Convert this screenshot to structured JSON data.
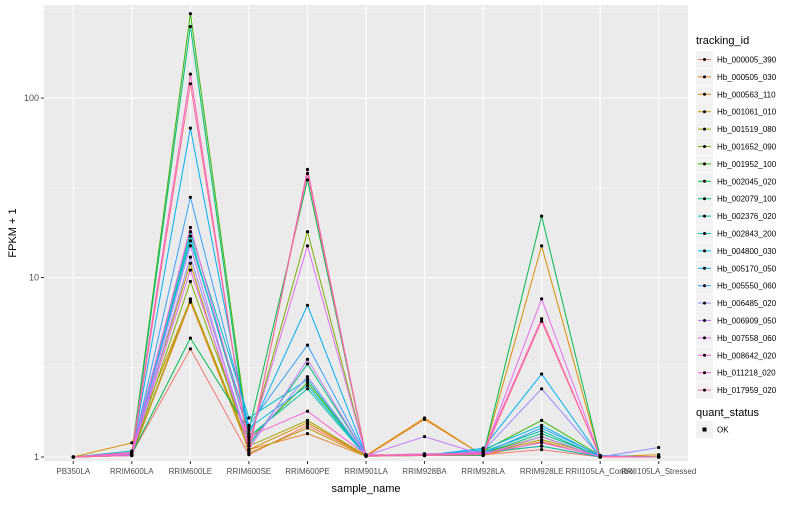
{
  "chart_data": {
    "type": "line",
    "xlabel": "sample_name",
    "ylabel": "FPKM + 1",
    "y_scale": "log10",
    "ylim": [
      0.95,
      330
    ],
    "grid": true,
    "legend_position": "right",
    "categories": [
      "PB350LA",
      "RRIM600LA",
      "RRIM600LE",
      "RRIM600SE",
      "RRIM600PE",
      "RRIM901LA",
      "RRIM928BA",
      "RRIM928LA",
      "RRIM928LE",
      "RRII105LA_Control",
      "RRII105LA_Stressed"
    ],
    "y_ticks": [
      1,
      10,
      100
    ],
    "y_tick_labels": [
      "1",
      "10",
      "100"
    ],
    "legend": {
      "color_title": "tracking_id",
      "shape_title": "quant_status",
      "shape_items": [
        "OK"
      ]
    },
    "series": [
      {
        "name": "Hb_000005_390",
        "color": "#F8766D",
        "values": [
          1,
          1.04,
          4,
          1.03,
          1.5,
          1.02,
          1.02,
          1.03,
          1.1,
          1,
          1
        ]
      },
      {
        "name": "Hb_000505_030",
        "color": "#EA8331",
        "values": [
          1,
          1.02,
          7.3,
          1.1,
          1.35,
          1.01,
          1.62,
          1.02,
          1.22,
          1,
          1
        ]
      },
      {
        "name": "Hb_000563_110",
        "color": "#D89000",
        "values": [
          1,
          1.2,
          7.5,
          1.1,
          1.55,
          1.02,
          1.65,
          1.02,
          15,
          1,
          1.03
        ]
      },
      {
        "name": "Hb_001061_010",
        "color": "#C09B00",
        "values": [
          1,
          1.06,
          12,
          1.05,
          1.45,
          1.01,
          1.02,
          1.05,
          1.15,
          1,
          1
        ]
      },
      {
        "name": "Hb_001519_080",
        "color": "#A3A500",
        "values": [
          1,
          1.03,
          7.6,
          1.15,
          1.6,
          1.02,
          1.03,
          1.04,
          1.25,
          1.02,
          1
        ]
      },
      {
        "name": "Hb_001652_090",
        "color": "#7CAE00",
        "values": [
          1,
          1.02,
          9.5,
          1.2,
          18,
          1.02,
          1.02,
          1.05,
          1.3,
          1,
          1
        ]
      },
      {
        "name": "Hb_001952_100",
        "color": "#39B600",
        "values": [
          1,
          1.05,
          295,
          1.25,
          2.6,
          1.03,
          1.02,
          1.08,
          1.6,
          1.02,
          1
        ]
      },
      {
        "name": "Hb_002045_020",
        "color": "#00BB4E",
        "values": [
          1,
          1.04,
          4.6,
          1.4,
          35,
          1.02,
          1.02,
          1.02,
          22,
          1,
          1
        ]
      },
      {
        "name": "Hb_002079_100",
        "color": "#00BF7D",
        "values": [
          1,
          1.03,
          250,
          1.15,
          3.3,
          1.02,
          1.04,
          1.05,
          1.35,
          1.01,
          1
        ]
      },
      {
        "name": "Hb_002376_020",
        "color": "#00C1A3",
        "values": [
          1,
          1.02,
          17,
          1.3,
          2.4,
          1.01,
          1.02,
          1.07,
          1.4,
          1,
          1
        ]
      },
      {
        "name": "Hb_002843_200",
        "color": "#00BFC4",
        "values": [
          1,
          1.08,
          18,
          1.65,
          2.7,
          1.02,
          1.03,
          1.06,
          1.15,
          1,
          1
        ]
      },
      {
        "name": "Hb_004800_030",
        "color": "#00BAE0",
        "values": [
          1,
          1.05,
          16,
          1.45,
          2.5,
          1.02,
          1.02,
          1.1,
          1.5,
          1.01,
          1
        ]
      },
      {
        "name": "Hb_005170_050",
        "color": "#00B0F6",
        "values": [
          1,
          1.03,
          68,
          1.35,
          7,
          1.02,
          1.02,
          1.12,
          2.9,
          1,
          1
        ]
      },
      {
        "name": "Hb_005550_060",
        "color": "#35A2FF",
        "values": [
          1,
          1.04,
          28,
          1.5,
          4.2,
          1.03,
          1.02,
          1.05,
          1.45,
          1.02,
          1
        ]
      },
      {
        "name": "Hb_006485_020",
        "color": "#9590FF",
        "values": [
          1,
          1.02,
          13,
          1.2,
          2.8,
          1.02,
          1.02,
          1.08,
          2.4,
          1,
          1.13
        ]
      },
      {
        "name": "Hb_006909_050",
        "color": "#C77CFF",
        "values": [
          1,
          1.02,
          15,
          1.1,
          3.5,
          1.02,
          1.3,
          1.03,
          1.3,
          1,
          1
        ]
      },
      {
        "name": "Hb_007558_060",
        "color": "#E76BF3",
        "values": [
          1,
          1.04,
          11,
          1.2,
          15,
          1.02,
          1.04,
          1.04,
          7.6,
          1,
          1
        ]
      },
      {
        "name": "Hb_008642_020",
        "color": "#FA62DB",
        "values": [
          1,
          1.05,
          19,
          1.3,
          1.8,
          1.03,
          1.02,
          1.05,
          1.2,
          1.01,
          1
        ]
      },
      {
        "name": "Hb_011218_020",
        "color": "#FF62BC",
        "values": [
          1,
          1.06,
          136,
          1.05,
          40,
          1.02,
          1.03,
          1.06,
          5.9,
          1,
          1
        ]
      },
      {
        "name": "Hb_017959_020",
        "color": "#FF6C91",
        "values": [
          1,
          1.02,
          120,
          1.08,
          38,
          1.01,
          1.02,
          1.03,
          5.7,
          1,
          1
        ]
      }
    ]
  }
}
